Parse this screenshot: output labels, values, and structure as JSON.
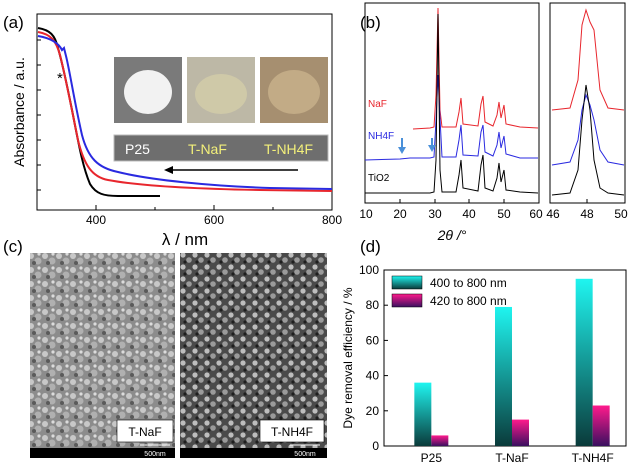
{
  "panels": {
    "a": "(a)",
    "b": "(b)",
    "c": "(c)",
    "d": "(d)"
  },
  "colors": {
    "p25": "#000000",
    "naf": "#e8262d",
    "nh4f": "#2a2ae0",
    "bar_400_top": "#1ff5f0",
    "bar_400_bottom": "#0a3a3a",
    "bar_420_top": "#ff1a8c",
    "bar_420_bottom": "#3a1060"
  },
  "panel_a": {
    "ylabel": "Absorbance / a.u.",
    "xlabel": "λ / nm",
    "xticks": [
      "400",
      "600",
      "800"
    ],
    "asterisk": "*",
    "photo_labels": [
      "P25",
      "T-NaF",
      "T-NH4F"
    ],
    "photo_label_colors": [
      "#ffffff",
      "#f3f07a",
      "#f3f07a"
    ]
  },
  "panel_b": {
    "xlabel": "2θ /°",
    "xticks_left": [
      "10",
      "20",
      "30",
      "40",
      "50",
      "60"
    ],
    "xticks_right": [
      "46",
      "48",
      "50"
    ],
    "series_labels": [
      "NaF",
      "NH4F",
      "TiO2"
    ]
  },
  "panel_c": {
    "labels": [
      "T-NaF",
      "T-NH4F"
    ],
    "scale_bar": "500nm"
  },
  "chart_data": {
    "type": "bar",
    "title": "",
    "xlabel": "",
    "ylabel": "Dye removal efficiency / %",
    "categories": [
      "P25",
      "T-NaF",
      "T-NH4F"
    ],
    "ylim": [
      0,
      100
    ],
    "yticks": [
      0,
      20,
      40,
      60,
      80,
      100
    ],
    "series": [
      {
        "name": "400 to 800 nm",
        "values": [
          36,
          79,
          95
        ]
      },
      {
        "name": "420 to 800 nm",
        "values": [
          6,
          15,
          23
        ]
      }
    ],
    "legend": "top-left"
  }
}
